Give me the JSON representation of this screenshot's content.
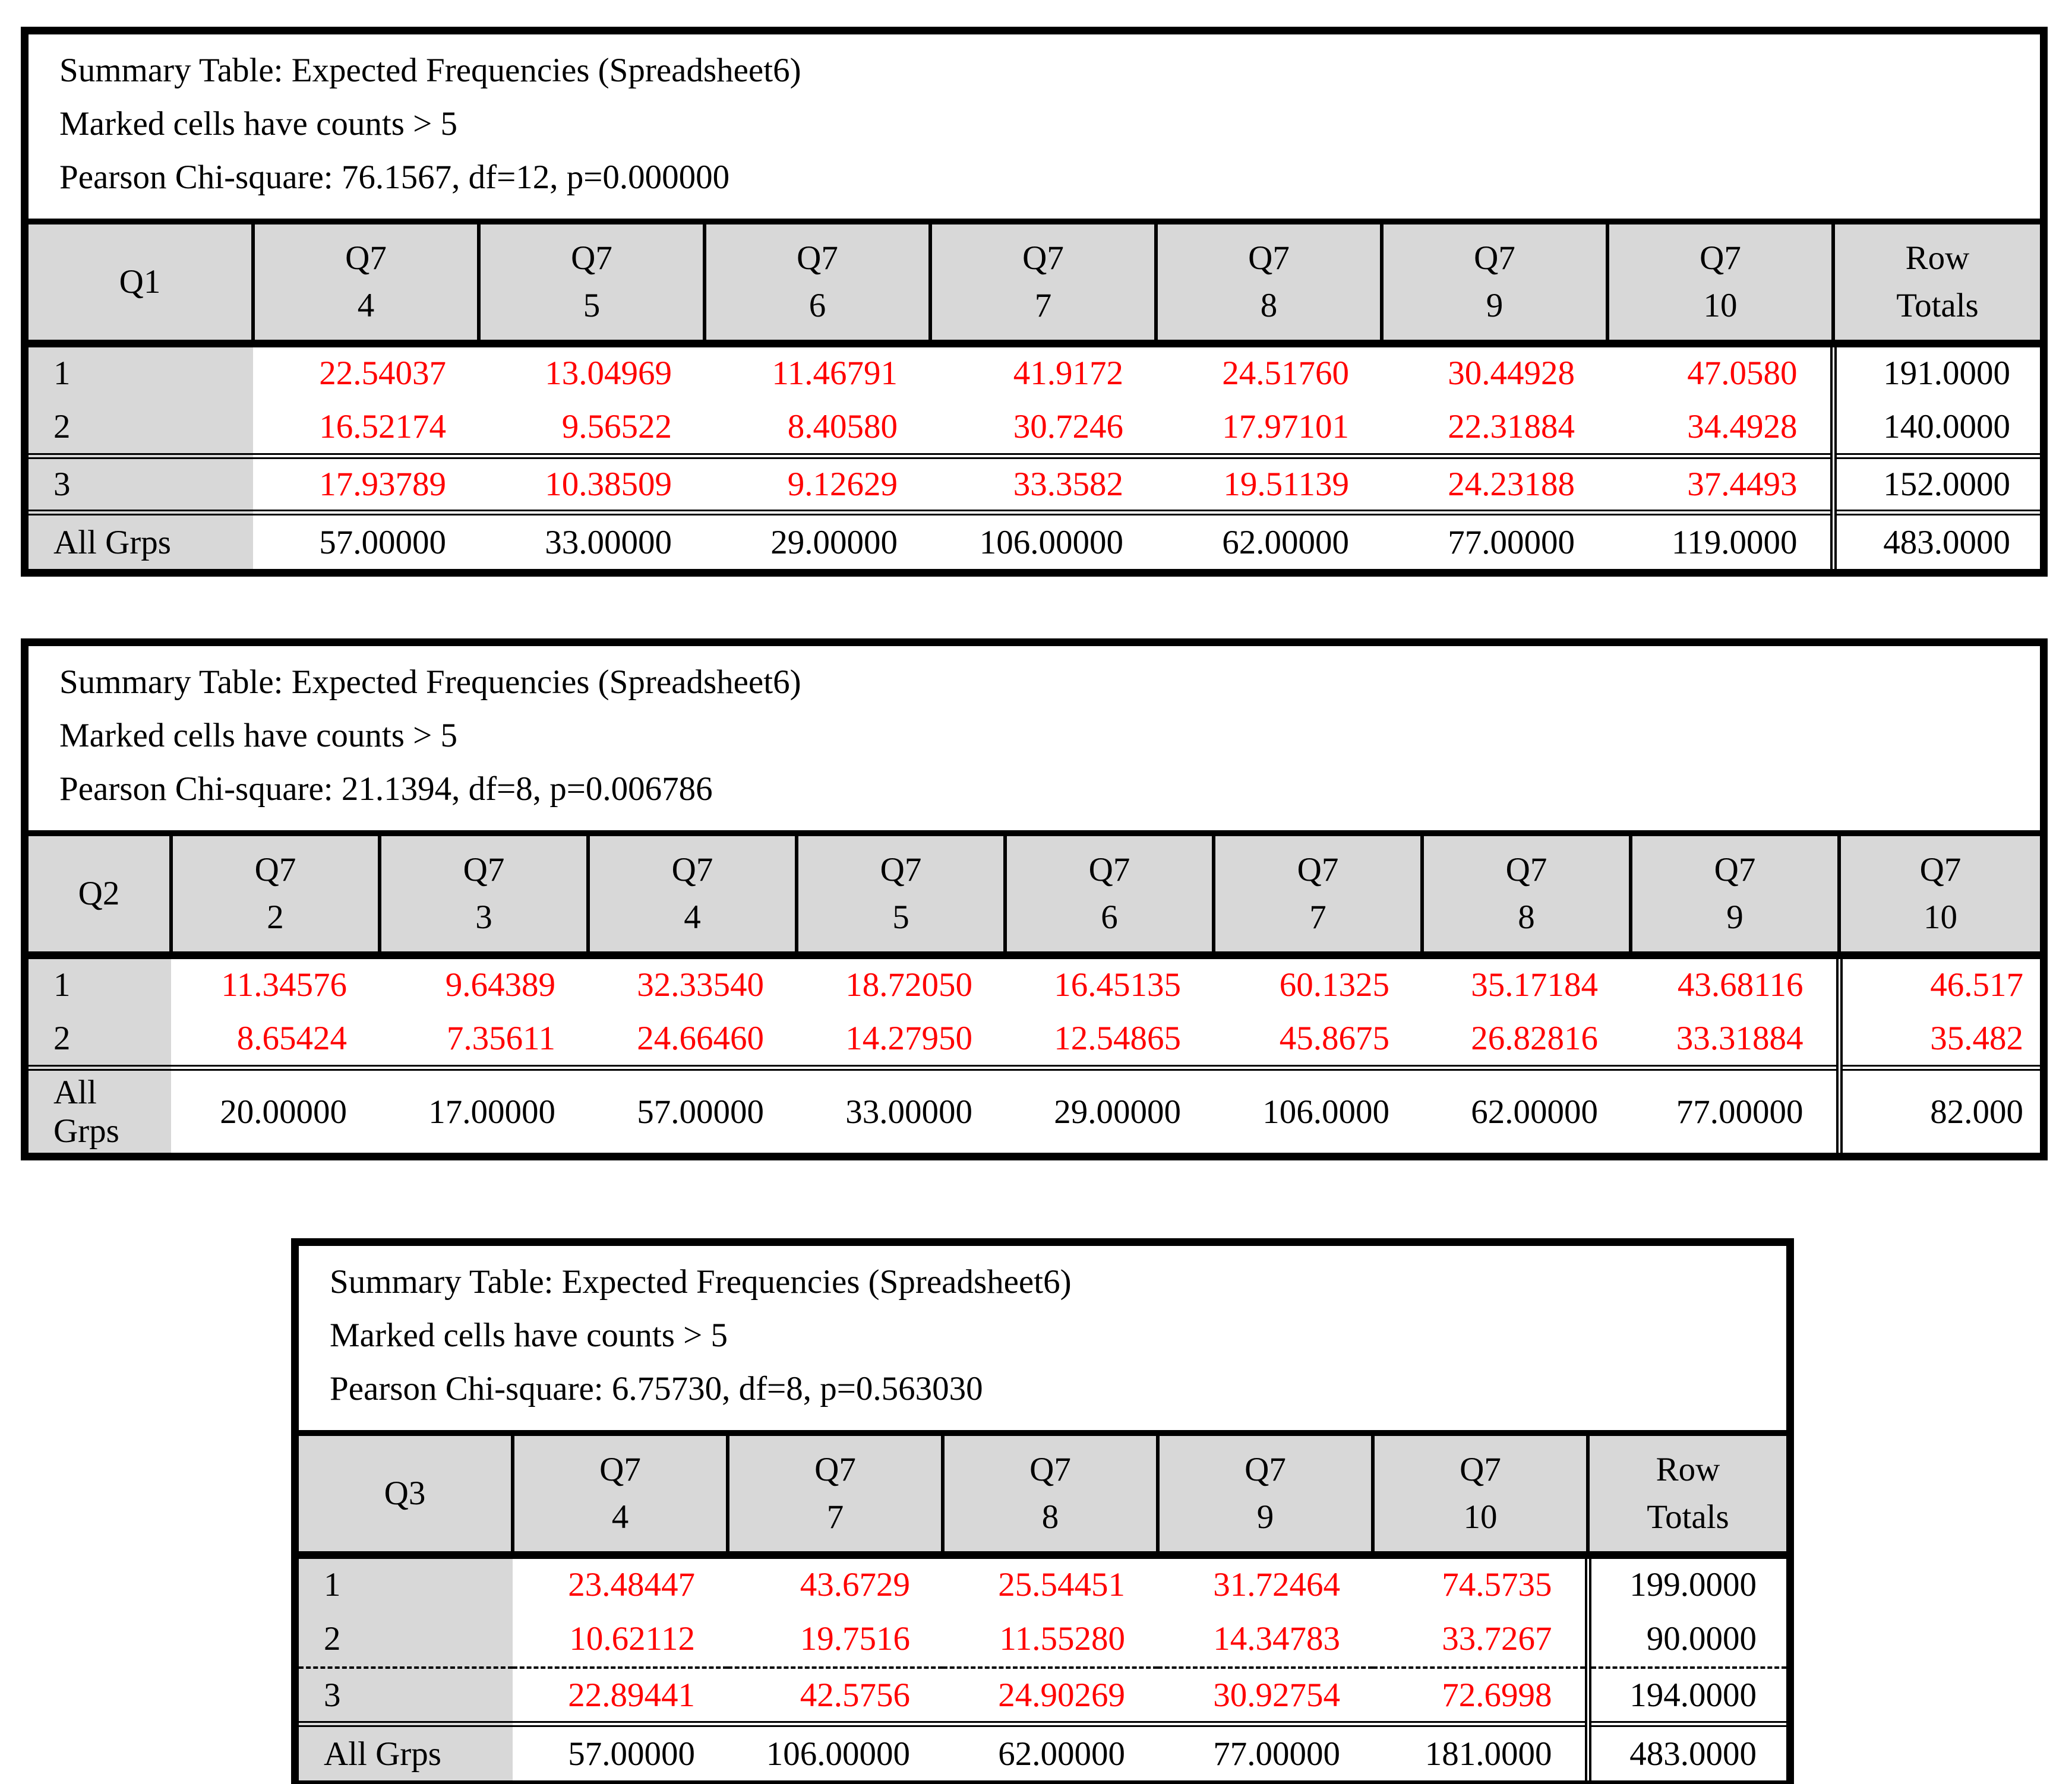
{
  "colors": {
    "marked_value_text": "#ff0000",
    "header_cell_bg": "#d8d8d8",
    "border": "#000000",
    "page_bg": "#ffffff"
  },
  "tables": [
    {
      "id": "q1",
      "title_lines": [
        "Summary Table: Expected Frequencies (Spreadsheet6)",
        "Marked cells have counts > 5",
        "Pearson Chi-square: 76.1567, df=12, p=0.000000"
      ],
      "row_variable": "Q1",
      "columns": [
        {
          "variable": "Q7",
          "level": "4"
        },
        {
          "variable": "Q7",
          "level": "5"
        },
        {
          "variable": "Q7",
          "level": "6"
        },
        {
          "variable": "Q7",
          "level": "7"
        },
        {
          "variable": "Q7",
          "level": "8"
        },
        {
          "variable": "Q7",
          "level": "9"
        },
        {
          "variable": "Q7",
          "level": "10"
        }
      ],
      "tail_column": {
        "line1": "Row",
        "line2": "Totals"
      },
      "tail_is_data": false,
      "rows": [
        {
          "label": "1",
          "marked": true,
          "separator_above": null,
          "cells": [
            "22.54037",
            "13.04969",
            "11.46791",
            "41.9172",
            "24.51760",
            "30.44928",
            "47.0580"
          ],
          "tail": "191.0000"
        },
        {
          "label": "2",
          "marked": true,
          "separator_above": null,
          "cells": [
            "16.52174",
            "9.56522",
            "8.40580",
            "30.7246",
            "17.97101",
            "22.31884",
            "34.4928"
          ],
          "tail": "140.0000"
        },
        {
          "label": "3",
          "marked": true,
          "separator_above": "double",
          "cells": [
            "17.93789",
            "10.38509",
            "9.12629",
            "33.3582",
            "19.51139",
            "24.23188",
            "37.4493"
          ],
          "tail": "152.0000"
        },
        {
          "label": "All Grps",
          "marked": false,
          "separator_above": "double",
          "cells": [
            "57.00000",
            "33.00000",
            "29.00000",
            "106.00000",
            "62.00000",
            "77.00000",
            "119.0000"
          ],
          "tail": "483.0000"
        }
      ]
    },
    {
      "id": "q2",
      "title_lines": [
        "Summary Table: Expected Frequencies (Spreadsheet6)",
        "Marked cells have counts > 5",
        "Pearson Chi-square: 21.1394, df=8, p=0.006786"
      ],
      "row_variable": "Q2",
      "columns": [
        {
          "variable": "Q7",
          "level": "2"
        },
        {
          "variable": "Q7",
          "level": "3"
        },
        {
          "variable": "Q7",
          "level": "4"
        },
        {
          "variable": "Q7",
          "level": "5"
        },
        {
          "variable": "Q7",
          "level": "6"
        },
        {
          "variable": "Q7",
          "level": "7"
        },
        {
          "variable": "Q7",
          "level": "8"
        },
        {
          "variable": "Q7",
          "level": "9"
        }
      ],
      "tail_column": {
        "line1": "Q7",
        "line2": "10"
      },
      "tail_is_data": true,
      "rows": [
        {
          "label": "1",
          "marked": true,
          "separator_above": null,
          "cells": [
            "11.34576",
            "9.64389",
            "32.33540",
            "18.72050",
            "16.45135",
            "60.1325",
            "35.17184",
            "43.68116"
          ],
          "tail": "46.517"
        },
        {
          "label": "2",
          "marked": true,
          "separator_above": null,
          "cells": [
            "8.65424",
            "7.35611",
            "24.66460",
            "14.27950",
            "12.54865",
            "45.8675",
            "26.82816",
            "33.31884"
          ],
          "tail": "35.482"
        },
        {
          "label": "All Grps",
          "marked": false,
          "separator_above": "double",
          "cells": [
            "20.00000",
            "17.00000",
            "57.00000",
            "33.00000",
            "29.00000",
            "106.0000",
            "62.00000",
            "77.00000"
          ],
          "tail": "82.000"
        }
      ]
    },
    {
      "id": "q3",
      "title_lines": [
        "Summary Table: Expected Frequencies (Spreadsheet6)",
        "Marked cells have counts > 5",
        "Pearson Chi-square: 6.75730, df=8, p=0.563030"
      ],
      "row_variable": "Q3",
      "columns": [
        {
          "variable": "Q7",
          "level": "4"
        },
        {
          "variable": "Q7",
          "level": "7"
        },
        {
          "variable": "Q7",
          "level": "8"
        },
        {
          "variable": "Q7",
          "level": "9"
        },
        {
          "variable": "Q7",
          "level": "10"
        }
      ],
      "tail_column": {
        "line1": "Row",
        "line2": "Totals"
      },
      "tail_is_data": false,
      "rows": [
        {
          "label": "1",
          "marked": true,
          "separator_above": null,
          "cells": [
            "23.48447",
            "43.6729",
            "25.54451",
            "31.72464",
            "74.5735"
          ],
          "tail": "199.0000"
        },
        {
          "label": "2",
          "marked": true,
          "separator_above": null,
          "cells": [
            "10.62112",
            "19.7516",
            "11.55280",
            "14.34783",
            "33.7267"
          ],
          "tail": "90.0000"
        },
        {
          "label": "3",
          "marked": true,
          "separator_above": "dashed",
          "cells": [
            "22.89441",
            "42.5756",
            "24.90269",
            "30.92754",
            "72.6998"
          ],
          "tail": "194.0000"
        },
        {
          "label": "All Grps",
          "marked": false,
          "separator_above": "double",
          "cells": [
            "57.00000",
            "106.00000",
            "62.00000",
            "77.00000",
            "181.0000"
          ],
          "tail": "483.0000"
        }
      ]
    }
  ]
}
